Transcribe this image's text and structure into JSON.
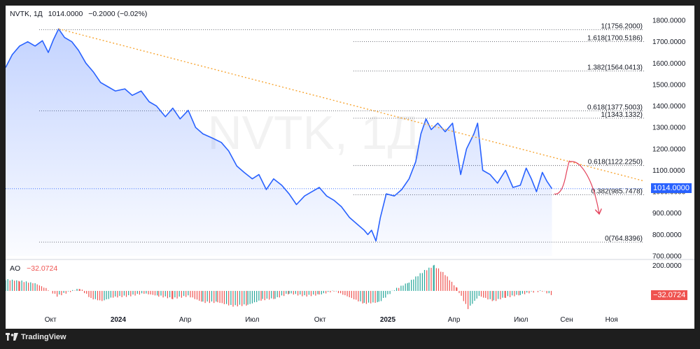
{
  "header": {
    "symbol": "NVTK, 1Д",
    "price": "1014.0000",
    "change": "−0.2000 (−0.02%)"
  },
  "watermark": "NVTK, 1Д",
  "colors": {
    "price_line": "#2962ff",
    "trend_line": "#f7a532",
    "forecast": "#e3425b",
    "ao_up": "#26a69a",
    "ao_down": "#ef5350",
    "price_tag_bg": "#2962ff",
    "ao_tag_bg": "#ef5350"
  },
  "price_tag": "1014.0000",
  "ao": {
    "label": "AO",
    "value": "−32.0724",
    "tag": "−32.0724",
    "axis_label": "200.0000"
  },
  "branding": {
    "label": "TradingView",
    "icon": "tradingview-logo-icon"
  },
  "chart_data": {
    "type": "line",
    "symbol": "NVTK",
    "interval": "1Д",
    "y_ticks": [
      "700.0000",
      "800.0000",
      "900.0000",
      "1000.0000",
      "1100.0000",
      "1200.0000",
      "1300.0000",
      "1400.0000",
      "1500.0000",
      "1600.0000",
      "1700.0000",
      "1800.0000"
    ],
    "y_range": [
      700,
      1810
    ],
    "x_ticks": [
      "Окт",
      "2024",
      "Апр",
      "Июл",
      "Окт",
      "2025",
      "Апр",
      "Июл",
      "Сен",
      "Ноя"
    ],
    "x_range": [
      "2023-08-01",
      "2025-12-15"
    ],
    "x_tick_dates": [
      "2023-10-01",
      "2024-01-01",
      "2024-04-01",
      "2024-07-01",
      "2024-10-01",
      "2025-01-01",
      "2025-04-01",
      "2025-07-01",
      "2025-09-01",
      "2025-11-01"
    ],
    "series": [
      {
        "points": [
          [
            "2023-08-01",
            1580
          ],
          [
            "2023-08-10",
            1640
          ],
          [
            "2023-08-20",
            1680
          ],
          [
            "2023-08-31",
            1700
          ],
          [
            "2023-09-10",
            1680
          ],
          [
            "2023-09-20",
            1705
          ],
          [
            "2023-09-28",
            1650
          ],
          [
            "2023-10-05",
            1710
          ],
          [
            "2023-10-12",
            1760
          ],
          [
            "2023-10-20",
            1720
          ],
          [
            "2023-10-30",
            1700
          ],
          [
            "2023-11-08",
            1660
          ],
          [
            "2023-11-18",
            1600
          ],
          [
            "2023-11-28",
            1560
          ],
          [
            "2023-12-08",
            1510
          ],
          [
            "2023-12-18",
            1490
          ],
          [
            "2023-12-28",
            1470
          ],
          [
            "2024-01-10",
            1480
          ],
          [
            "2024-01-20",
            1450
          ],
          [
            "2024-02-01",
            1470
          ],
          [
            "2024-02-12",
            1420
          ],
          [
            "2024-02-22",
            1400
          ],
          [
            "2024-03-05",
            1350
          ],
          [
            "2024-03-15",
            1390
          ],
          [
            "2024-03-25",
            1340
          ],
          [
            "2024-04-05",
            1380
          ],
          [
            "2024-04-15",
            1300
          ],
          [
            "2024-04-25",
            1270
          ],
          [
            "2024-05-08",
            1250
          ],
          [
            "2024-05-20",
            1230
          ],
          [
            "2024-05-30",
            1190
          ],
          [
            "2024-06-10",
            1120
          ],
          [
            "2024-06-20",
            1090
          ],
          [
            "2024-07-01",
            1060
          ],
          [
            "2024-07-10",
            1080
          ],
          [
            "2024-07-20",
            1010
          ],
          [
            "2024-07-30",
            1060
          ],
          [
            "2024-08-10",
            1030
          ],
          [
            "2024-08-20",
            990
          ],
          [
            "2024-08-30",
            940
          ],
          [
            "2024-09-10",
            980
          ],
          [
            "2024-09-20",
            1000
          ],
          [
            "2024-09-30",
            1020
          ],
          [
            "2024-10-10",
            980
          ],
          [
            "2024-10-20",
            960
          ],
          [
            "2024-10-30",
            930
          ],
          [
            "2024-11-10",
            880
          ],
          [
            "2024-11-20",
            850
          ],
          [
            "2024-11-30",
            820
          ],
          [
            "2024-12-05",
            800
          ],
          [
            "2024-12-10",
            820
          ],
          [
            "2024-12-16",
            770
          ],
          [
            "2024-12-22",
            880
          ],
          [
            "2024-12-30",
            990
          ],
          [
            "2025-01-10",
            980
          ],
          [
            "2025-01-20",
            1010
          ],
          [
            "2025-01-30",
            1060
          ],
          [
            "2025-02-08",
            1140
          ],
          [
            "2025-02-15",
            1270
          ],
          [
            "2025-02-22",
            1340
          ],
          [
            "2025-03-01",
            1290
          ],
          [
            "2025-03-10",
            1320
          ],
          [
            "2025-03-20",
            1280
          ],
          [
            "2025-03-30",
            1320
          ],
          [
            "2025-04-05",
            1190
          ],
          [
            "2025-04-10",
            1080
          ],
          [
            "2025-04-18",
            1200
          ],
          [
            "2025-04-28",
            1270
          ],
          [
            "2025-05-03",
            1320
          ],
          [
            "2025-05-10",
            1100
          ],
          [
            "2025-05-20",
            1080
          ],
          [
            "2025-05-30",
            1040
          ],
          [
            "2025-06-10",
            1100
          ],
          [
            "2025-06-20",
            1020
          ],
          [
            "2025-06-30",
            1030
          ],
          [
            "2025-07-08",
            1110
          ],
          [
            "2025-07-15",
            1060
          ],
          [
            "2025-07-22",
            1000
          ],
          [
            "2025-07-30",
            1090
          ],
          [
            "2025-08-05",
            1050
          ],
          [
            "2025-08-12",
            1014
          ]
        ]
      }
    ],
    "fib_levels": [
      {
        "label": "1(1756.2000)",
        "value": 1756.2
      },
      {
        "label": "1.618(1700.5186)",
        "value": 1700.5186
      },
      {
        "label": "1.382(1564.0413)",
        "value": 1564.0413
      },
      {
        "label": "0.618(1377.5003)",
        "value": 1377.5003
      },
      {
        "label": "1(1343.1332)",
        "value": 1343.1332
      },
      {
        "label": "0.618(1122.2250)",
        "value": 1122.225
      },
      {
        "label": "0.382(985.7478)",
        "value": 985.7478
      },
      {
        "label": "0(764.8396)",
        "value": 764.8396
      }
    ],
    "trendline": {
      "from": [
        "2023-10-12",
        1760
      ],
      "to": [
        "2025-12-15",
        1050
      ]
    },
    "forecast_path": [
      [
        "2025-08-15",
        990
      ],
      [
        "2025-08-25",
        1000
      ],
      [
        "2025-09-05",
        1140
      ],
      [
        "2025-09-20",
        1120
      ],
      [
        "2025-10-15",
        900
      ]
    ],
    "ao_series": [
      [
        "2023-08-01",
        90
      ],
      [
        "2023-08-20",
        80
      ],
      [
        "2023-09-10",
        60
      ],
      [
        "2023-09-25",
        20
      ],
      [
        "2023-10-10",
        -40
      ],
      [
        "2023-10-25",
        -10
      ],
      [
        "2023-11-10",
        20
      ],
      [
        "2023-11-25",
        -60
      ],
      [
        "2023-12-10",
        -80
      ],
      [
        "2023-12-25",
        -50
      ],
      [
        "2024-01-15",
        -40
      ],
      [
        "2024-02-05",
        -20
      ],
      [
        "2024-02-25",
        -40
      ],
      [
        "2024-03-15",
        -60
      ],
      [
        "2024-04-05",
        -40
      ],
      [
        "2024-04-25",
        -90
      ],
      [
        "2024-05-15",
        -90
      ],
      [
        "2024-06-05",
        -120
      ],
      [
        "2024-06-25",
        -110
      ],
      [
        "2024-07-15",
        -70
      ],
      [
        "2024-08-01",
        -60
      ],
      [
        "2024-08-20",
        -20
      ],
      [
        "2024-09-10",
        -40
      ],
      [
        "2024-09-30",
        -30
      ],
      [
        "2024-10-20",
        0
      ],
      [
        "2024-11-10",
        -50
      ],
      [
        "2024-11-30",
        -100
      ],
      [
        "2024-12-20",
        -90
      ],
      [
        "2025-01-10",
        10
      ],
      [
        "2025-01-30",
        70
      ],
      [
        "2025-02-20",
        160
      ],
      [
        "2025-03-05",
        200
      ],
      [
        "2025-03-20",
        130
      ],
      [
        "2025-04-05",
        20
      ],
      [
        "2025-04-20",
        -140
      ],
      [
        "2025-05-05",
        -40
      ],
      [
        "2025-05-25",
        -80
      ],
      [
        "2025-06-10",
        -50
      ],
      [
        "2025-06-30",
        -30
      ],
      [
        "2025-07-15",
        -10
      ],
      [
        "2025-07-30",
        0
      ],
      [
        "2025-08-12",
        -32
      ]
    ]
  }
}
